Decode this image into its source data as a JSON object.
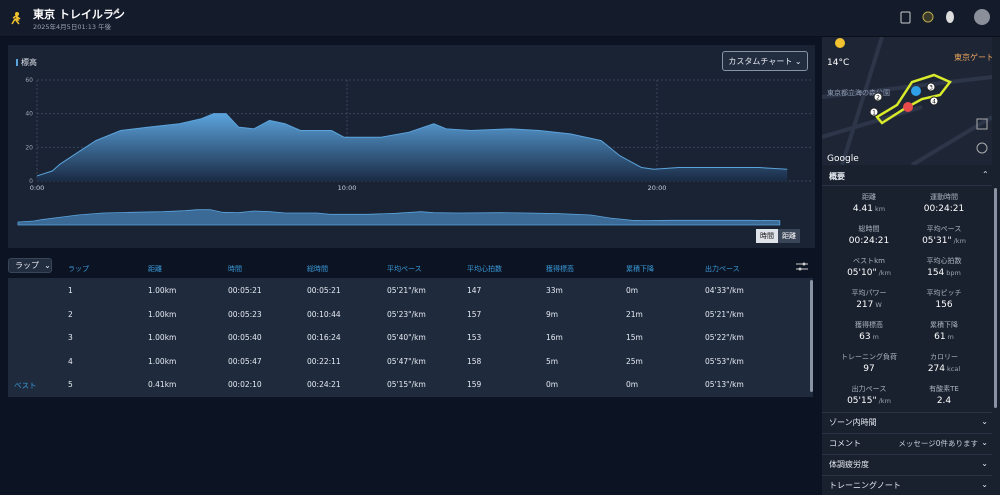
{
  "header": {
    "title": "東京 トレイルラン",
    "datetime": "2025年4月5日01:13 午後"
  },
  "chart_data": {
    "type": "area",
    "title": "標高",
    "x": [
      0,
      0.5,
      0.74,
      1.4,
      1.9,
      2.7,
      3.6,
      4.6,
      5.3,
      5.7,
      6.1,
      6.5,
      7.0,
      7.5,
      8.0,
      8.5,
      9.5,
      9.9,
      11.1,
      12.0,
      12.8,
      13.2,
      14.0,
      15.3,
      16.2,
      17.2,
      18.2,
      18.8,
      19.5,
      19.9,
      20.7,
      22.0,
      23.3,
      24.2
    ],
    "values": [
      3,
      6,
      10,
      18,
      24,
      30,
      32,
      34,
      37,
      40,
      40,
      32,
      31,
      36,
      34,
      30,
      30,
      26,
      26,
      29,
      34,
      31,
      30,
      31,
      30,
      28,
      24,
      15,
      8,
      7,
      8,
      8,
      8,
      7
    ],
    "color": "#5ba3dc",
    "xlim": [
      0,
      25
    ],
    "ylim": [
      0,
      60
    ],
    "xticks": [
      {
        "value": 0,
        "label": "0:00"
      },
      {
        "value": 10,
        "label": "10:00"
      },
      {
        "value": 20,
        "label": "20:00"
      }
    ],
    "yticks": [
      0,
      20,
      40,
      60
    ],
    "grid": true
  },
  "chart_controls": {
    "custom_chart": "カスタムチャート",
    "time": "時間",
    "distance": "距離"
  },
  "laps": {
    "dropdown": "ラップ",
    "columns": [
      "ラップ",
      "距離",
      "時間",
      "総時間",
      "平均ペース",
      "平均心拍数",
      "獲得標高",
      "累積下降",
      "出力ペース"
    ],
    "rows": [
      {
        "cells": [
          "1",
          "1.00km",
          "00:05:21",
          "00:05:21",
          "05'21\"/km",
          "147",
          "33m",
          "0m",
          "04'33\"/km"
        ]
      },
      {
        "cells": [
          "2",
          "1.00km",
          "00:05:23",
          "00:10:44",
          "05'23\"/km",
          "157",
          "9m",
          "21m",
          "05'21\"/km"
        ]
      },
      {
        "cells": [
          "3",
          "1.00km",
          "00:05:40",
          "00:16:24",
          "05'40\"/km",
          "153",
          "16m",
          "15m",
          "05'22\"/km"
        ]
      },
      {
        "cells": [
          "4",
          "1.00km",
          "00:05:47",
          "00:22:11",
          "05'47\"/km",
          "158",
          "5m",
          "25m",
          "05'53\"/km"
        ]
      },
      {
        "tag": "ベスト",
        "cells": [
          "5",
          "0.41km",
          "00:02:10",
          "00:24:21",
          "05'15\"/km",
          "159",
          "0m",
          "0m",
          "05'13\"/km"
        ]
      }
    ]
  },
  "sidebar": {
    "temperature": "14°C",
    "map": {
      "labels": [
        "東京ゲートブ",
        "東京都立海の森公園"
      ],
      "markers": [
        "1",
        "2",
        "3",
        "4"
      ],
      "attribution": "Google"
    },
    "summary": {
      "title": "概要",
      "stats": [
        {
          "label": "距離",
          "value": "4.41",
          "unit": "km"
        },
        {
          "label": "運動時間",
          "value": "00:24:21"
        },
        {
          "label": "総時間",
          "value": "00:24:21"
        },
        {
          "label": "平均ペース",
          "value": "05'31\"",
          "unit": "/km"
        },
        {
          "label": "ベストkm",
          "value": "05'10\"",
          "unit": "/km"
        },
        {
          "label": "平均心拍数",
          "value": "154",
          "unit": "bpm"
        },
        {
          "label": "平均パワー",
          "value": "217",
          "unit": "W"
        },
        {
          "label": "平均ピッチ",
          "value": "156"
        },
        {
          "label": "獲得標高",
          "value": "63",
          "unit": "m"
        },
        {
          "label": "累積下降",
          "value": "61",
          "unit": "m"
        },
        {
          "label": "トレーニング負荷",
          "value": "97"
        },
        {
          "label": "カロリー",
          "value": "274",
          "unit": "kcal"
        },
        {
          "label": "出力ペース",
          "value": "05'15\"",
          "unit": "/km"
        },
        {
          "label": "有酸素TE",
          "value": "2.4"
        }
      ]
    },
    "sections": [
      {
        "title": "ゾーン内時間"
      },
      {
        "title": "コメント",
        "detail": "メッセージ0件あります"
      },
      {
        "title": "体調疲労度"
      },
      {
        "title": "トレーニングノート"
      }
    ]
  }
}
